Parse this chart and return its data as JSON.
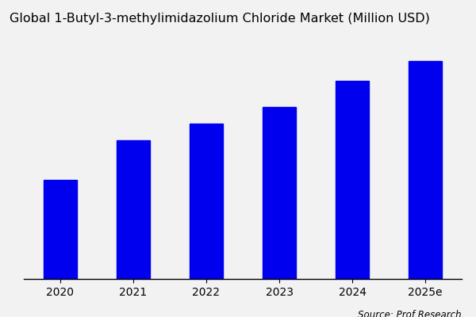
{
  "title": "Global 1-Butyl-3-methylimidazolium Chloride Market (Million USD)",
  "categories": [
    "2020",
    "2021",
    "2022",
    "2023",
    "2024",
    "2025e"
  ],
  "values": [
    30,
    42,
    47,
    52,
    60,
    66
  ],
  "bar_color": "#0000ee",
  "background_color": "#f2f2f2",
  "source_text": "Source: Prof Research",
  "title_fontsize": 11.5,
  "tick_fontsize": 10,
  "source_fontsize": 8.5,
  "bar_width": 0.45,
  "ylim": [
    0,
    72
  ],
  "figsize": [
    6.0,
    4.0
  ],
  "dpi": 100
}
